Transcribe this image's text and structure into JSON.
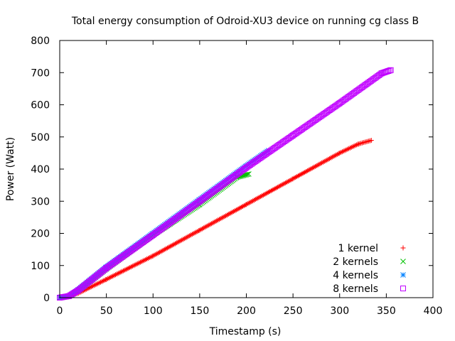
{
  "chart_data": {
    "type": "scatter",
    "title": "Total energy consumption of Odroid-XU3 device on running cg class B",
    "xlabel": "Timestamp (s)",
    "ylabel": "Power (Watt)",
    "xlim": [
      0,
      400
    ],
    "ylim": [
      0,
      800
    ],
    "x_ticks": [
      0,
      50,
      100,
      150,
      200,
      250,
      300,
      350,
      400
    ],
    "y_ticks": [
      0,
      100,
      200,
      300,
      400,
      500,
      600,
      700,
      800
    ],
    "x_tick_labels": [
      "0",
      "50",
      "100",
      "150",
      "200",
      "250",
      "300",
      "350",
      "400"
    ],
    "y_tick_labels": [
      "0",
      "100",
      "200",
      "300",
      "400",
      "500",
      "600",
      "700",
      "800"
    ],
    "grid": false,
    "legend_position": "bottom-right",
    "series": [
      {
        "name": "1 kernel",
        "marker": "plus",
        "color": "#ff0000",
        "x": [
          0,
          10,
          20,
          50,
          100,
          150,
          200,
          250,
          300,
          320,
          335
        ],
        "y": [
          0,
          4,
          14,
          57,
          130,
          210,
          290,
          370,
          450,
          478,
          490
        ]
      },
      {
        "name": "2 kernels",
        "marker": "cross",
        "color": "#00c000",
        "x": [
          0,
          10,
          20,
          50,
          100,
          150,
          190,
          203
        ],
        "y": [
          0,
          5,
          22,
          90,
          195,
          290,
          375,
          385
        ]
      },
      {
        "name": "4 kernels",
        "marker": "star",
        "color": "#0080ff",
        "x": [
          0,
          10,
          20,
          50,
          100,
          150,
          200,
          225
        ],
        "y": [
          0,
          5,
          25,
          95,
          200,
          305,
          410,
          460
        ]
      },
      {
        "name": "8 kernels",
        "marker": "box",
        "color": "#c000ff",
        "x": [
          0,
          10,
          20,
          50,
          100,
          150,
          200,
          250,
          300,
          345,
          355
        ],
        "y": [
          0,
          5,
          23,
          92,
          195,
          300,
          405,
          505,
          605,
          698,
          708
        ]
      }
    ]
  }
}
